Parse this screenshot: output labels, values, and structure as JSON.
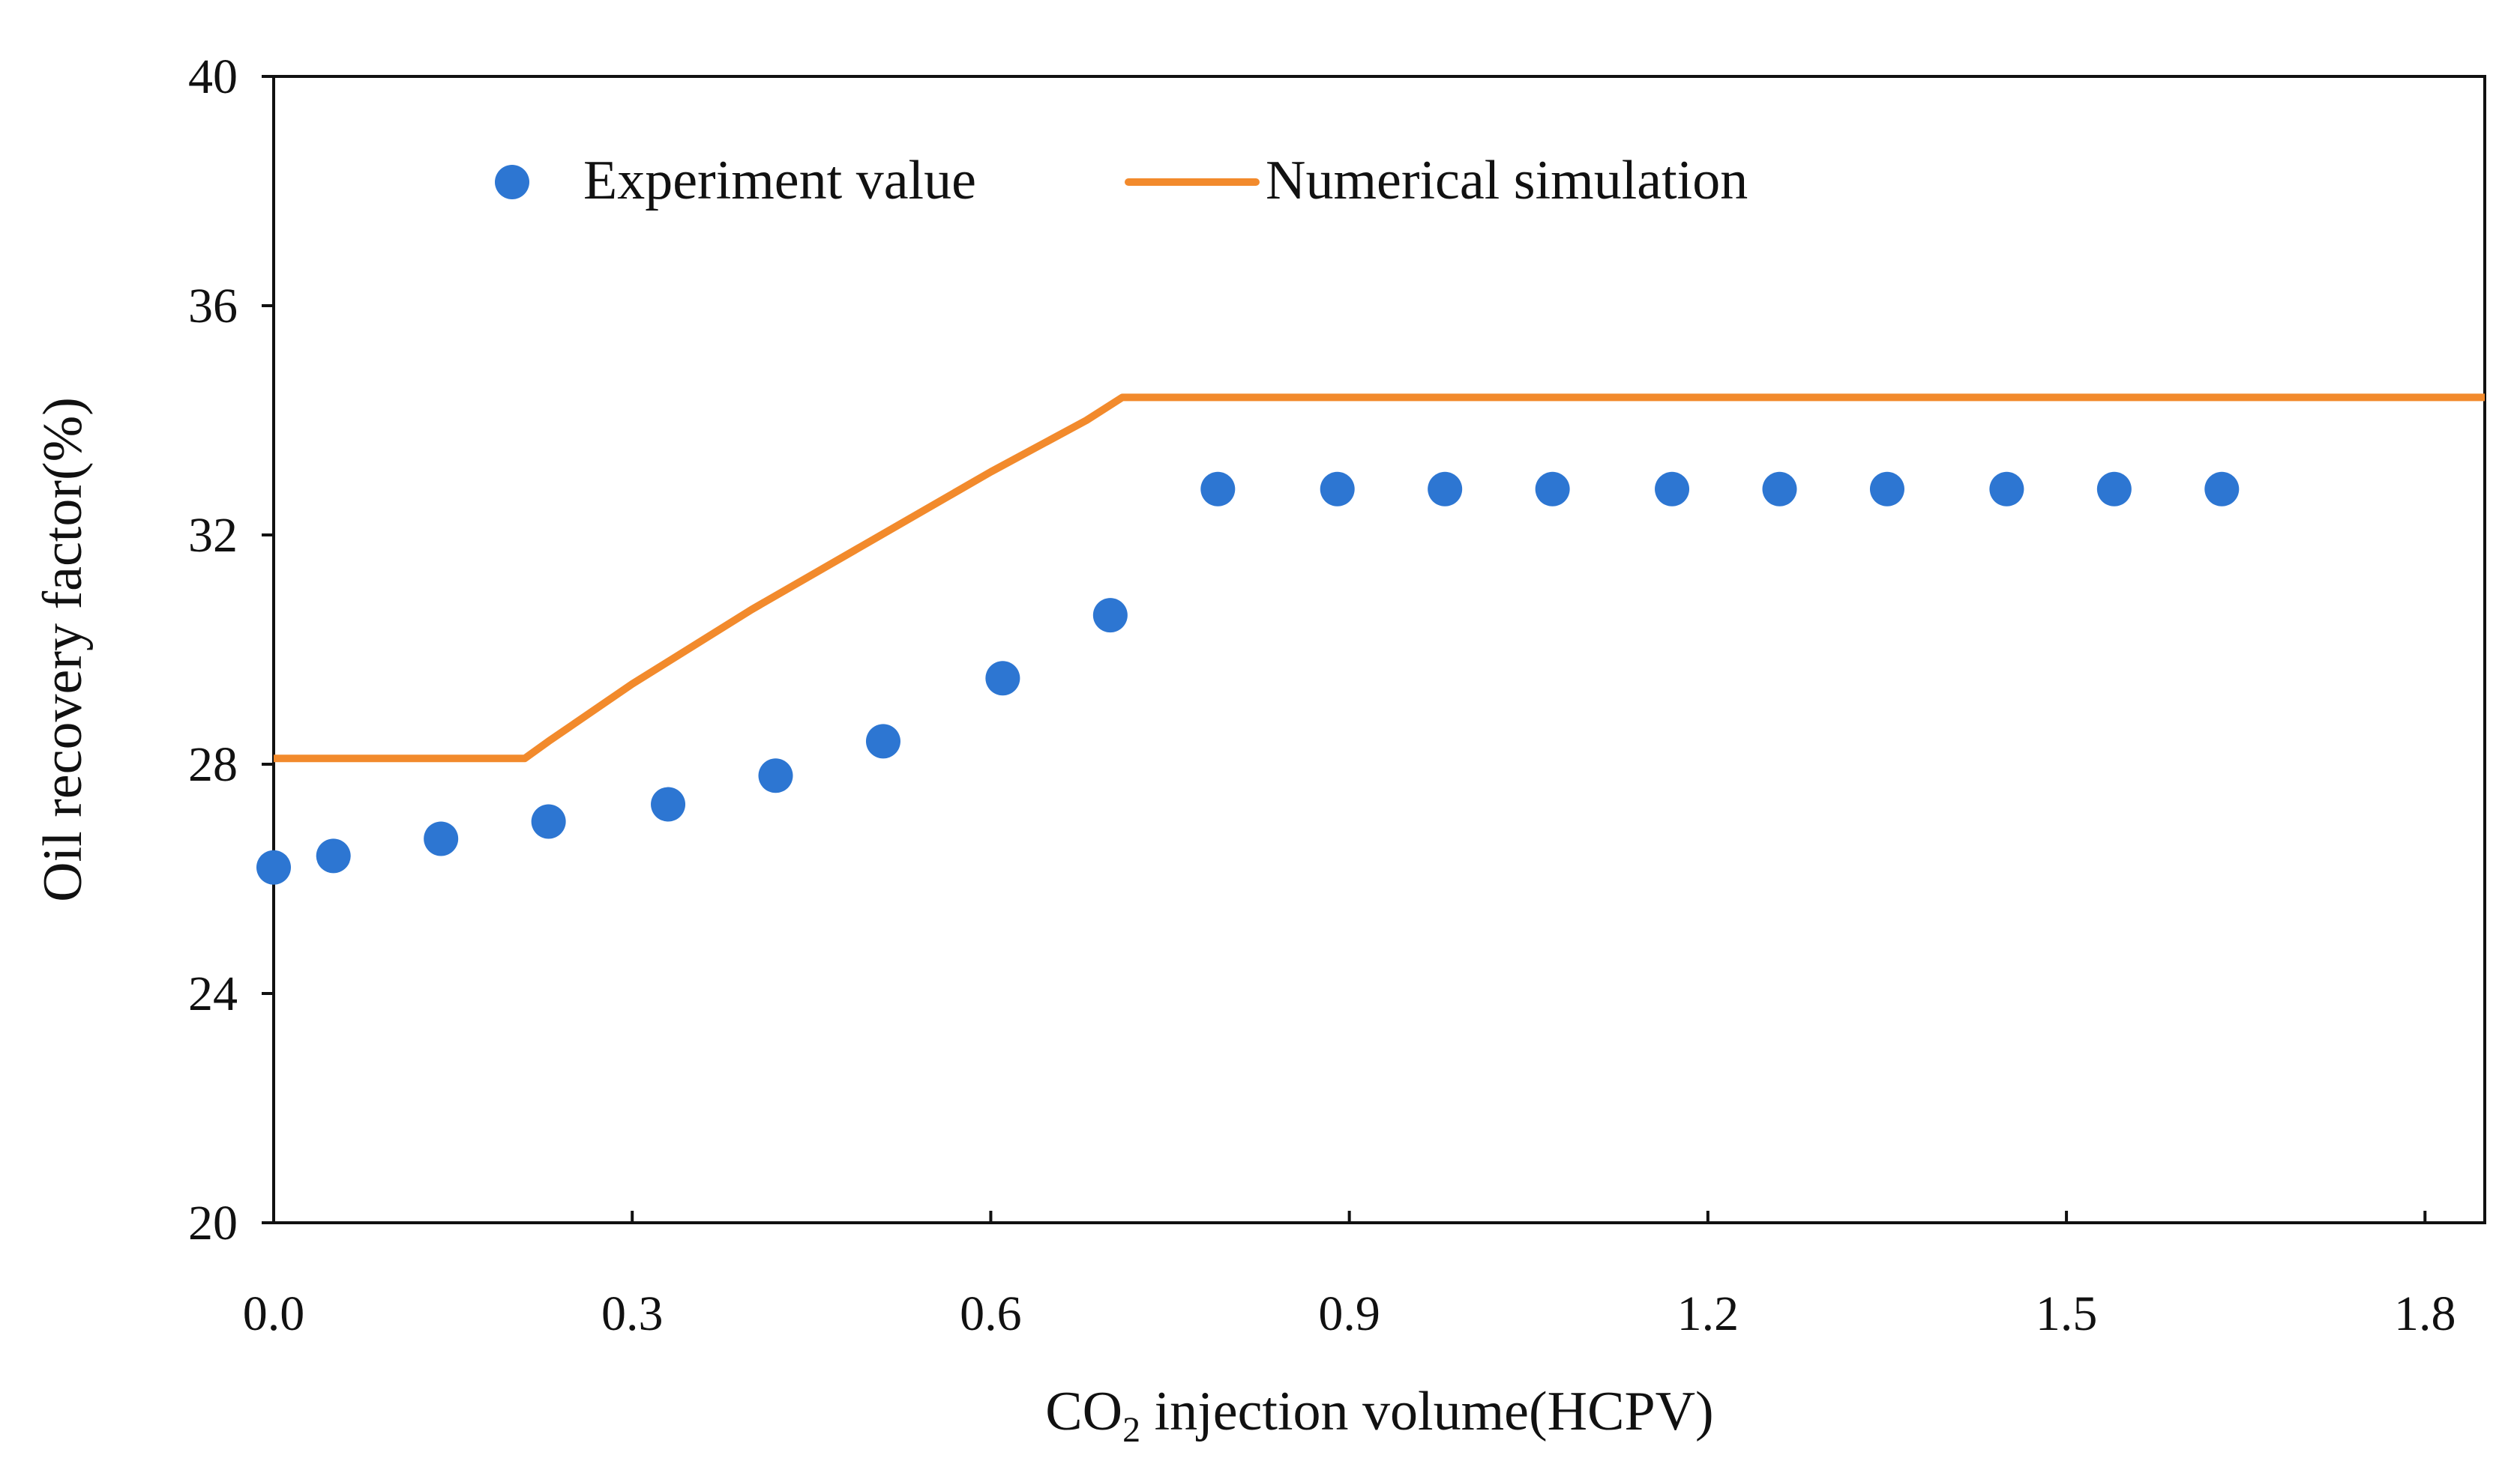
{
  "chart_data": {
    "type": "line+scatter",
    "xlabel_main": "CO",
    "xlabel_sub": "2",
    "xlabel_rest": " injection volume(HCPV)",
    "ylabel": "Oil recovery factor(%)",
    "xlim": [
      0.0,
      1.85
    ],
    "ylim": [
      20,
      40
    ],
    "x_ticks": [
      0.0,
      0.3,
      0.6,
      0.9,
      1.2,
      1.5,
      1.8
    ],
    "x_tick_labels": [
      "0.0",
      "0.3",
      "0.6",
      "0.9",
      "1.2",
      "1.5",
      "1.8"
    ],
    "y_ticks": [
      20,
      24,
      28,
      32,
      36,
      40
    ],
    "y_tick_labels": [
      "20",
      "24",
      "28",
      "32",
      "36",
      "40"
    ],
    "legend_position": "top",
    "series": [
      {
        "name": "Experiment value",
        "kind": "scatter",
        "color": "#2d76d2",
        "points": [
          [
            0.0,
            26.2
          ],
          [
            0.05,
            26.4
          ],
          [
            0.14,
            26.7
          ],
          [
            0.23,
            27.0
          ],
          [
            0.33,
            27.3
          ],
          [
            0.42,
            27.8
          ],
          [
            0.51,
            28.4
          ],
          [
            0.61,
            29.5
          ],
          [
            0.7,
            30.6
          ],
          [
            0.79,
            32.8
          ],
          [
            0.89,
            32.8
          ],
          [
            0.98,
            32.8
          ],
          [
            1.07,
            32.8
          ],
          [
            1.17,
            32.8
          ],
          [
            1.26,
            32.8
          ],
          [
            1.35,
            32.8
          ],
          [
            1.45,
            32.8
          ],
          [
            1.54,
            32.8
          ],
          [
            1.63,
            32.8
          ]
        ]
      },
      {
        "name": "Numerical simulation",
        "kind": "line",
        "color": "#f28a2c",
        "points": [
          [
            0.0,
            28.1
          ],
          [
            0.19,
            28.1
          ],
          [
            0.21,
            28.1
          ],
          [
            0.23,
            28.4
          ],
          [
            0.3,
            29.4
          ],
          [
            0.4,
            30.7
          ],
          [
            0.5,
            31.9
          ],
          [
            0.6,
            33.1
          ],
          [
            0.68,
            34.0
          ],
          [
            0.71,
            34.4
          ],
          [
            0.73,
            34.4
          ],
          [
            1.85,
            34.4
          ]
        ]
      }
    ]
  }
}
